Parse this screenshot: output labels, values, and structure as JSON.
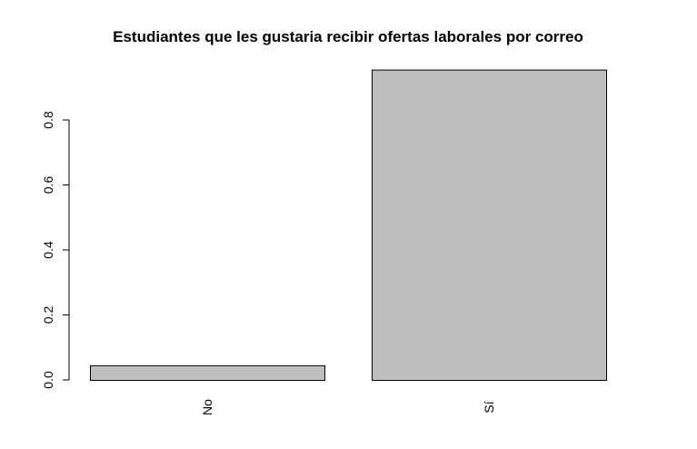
{
  "chart_data": {
    "type": "bar",
    "title": "Estudiantes que les gustaria recibir ofertas laborales por correo",
    "xlabel": "",
    "ylabel": "",
    "categories": [
      "No",
      "Sí"
    ],
    "values": [
      0.045,
      0.955
    ],
    "ylim": [
      0,
      0.96
    ],
    "yticks": [
      0.0,
      0.2,
      0.4,
      0.6,
      0.8
    ],
    "ytick_labels": [
      "0.0",
      "0.2",
      "0.4",
      "0.6",
      "0.8"
    ],
    "grid": false,
    "legend": "none",
    "tick_label_orientation": "vertical",
    "colors": {
      "bar_fill": "#bebebe",
      "bar_stroke": "#000000",
      "axis": "#000000",
      "background": "#ffffff"
    }
  }
}
